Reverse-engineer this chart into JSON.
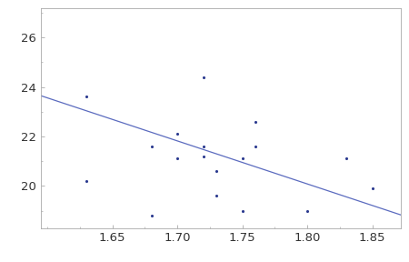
{
  "scatter_points": [
    [
      1.63,
      23.6
    ],
    [
      1.63,
      20.2
    ],
    [
      1.68,
      21.6
    ],
    [
      1.68,
      18.8
    ],
    [
      1.7,
      22.1
    ],
    [
      1.7,
      21.1
    ],
    [
      1.72,
      24.4
    ],
    [
      1.72,
      21.6
    ],
    [
      1.72,
      21.2
    ],
    [
      1.73,
      20.6
    ],
    [
      1.73,
      19.6
    ],
    [
      1.75,
      21.1
    ],
    [
      1.75,
      19.0
    ],
    [
      1.76,
      22.6
    ],
    [
      1.76,
      21.6
    ],
    [
      1.8,
      19.0
    ],
    [
      1.83,
      21.1
    ],
    [
      1.85,
      19.9
    ]
  ],
  "line_intercept": 51.4,
  "line_slope": -17.4,
  "x_line_start": 1.595,
  "x_line_end": 1.872,
  "xlim": [
    1.595,
    1.872
  ],
  "ylim": [
    18.3,
    27.2
  ],
  "xticks": [
    1.65,
    1.7,
    1.75,
    1.8,
    1.85
  ],
  "yticks": [
    20,
    22,
    24,
    26
  ],
  "point_color": "#2b3a8f",
  "line_color": "#5b6bbf",
  "point_size": 5,
  "line_width": 0.9,
  "bg_color": "#ffffff",
  "tick_label_fontsize": 9.5,
  "spine_color": "#aaaaaa",
  "tick_color": "#aaaaaa",
  "tick_label_color": "#333333"
}
